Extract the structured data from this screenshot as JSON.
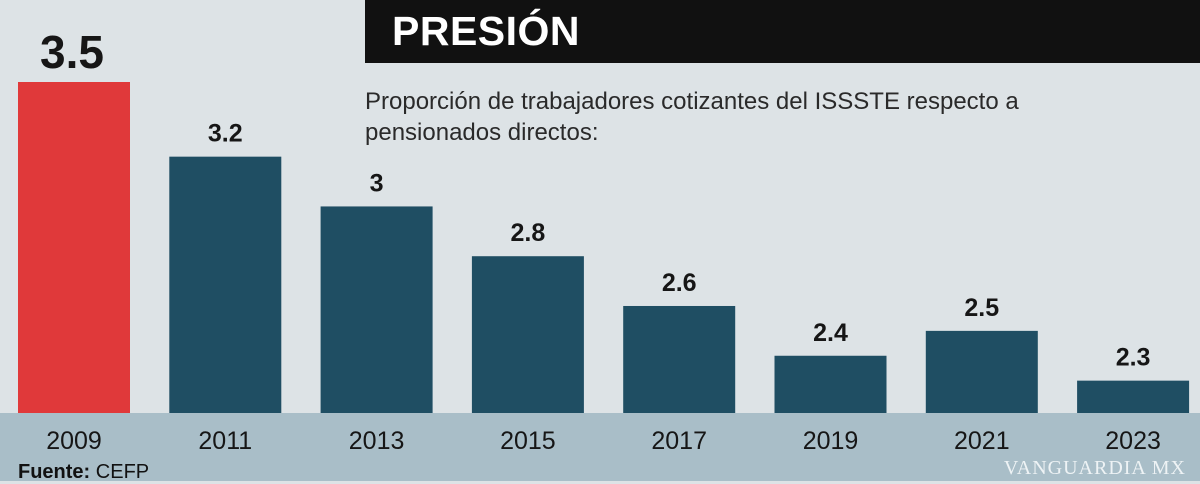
{
  "title": "PRESIÓN",
  "subtitle": "Proporción de trabajadores cotizantes del ISSSTE respecto a pensionados directos:",
  "source_label": "Fuente:",
  "source_value": "CEFP",
  "watermark": "VANGUARDIA MX",
  "colors": {
    "highlight": "#e0393a",
    "bar": "#1f4e63",
    "background": "#dde3e6",
    "axis_band": "#a9bec8"
  },
  "chart_data": {
    "type": "bar",
    "categories": [
      "2009",
      "2011",
      "2013",
      "2015",
      "2017",
      "2019",
      "2021",
      "2023"
    ],
    "values": [
      3.5,
      3.2,
      3,
      2.8,
      2.6,
      2.4,
      2.5,
      2.3
    ],
    "labels": [
      "3.5",
      "3.2",
      "3",
      "2.8",
      "2.6",
      "2.4",
      "2.5",
      "2.3"
    ],
    "highlight_index": 0,
    "title": "PRESIÓN",
    "xlabel": "",
    "ylabel": "",
    "ylim": [
      2.17,
      3.5
    ],
    "grid": false
  }
}
